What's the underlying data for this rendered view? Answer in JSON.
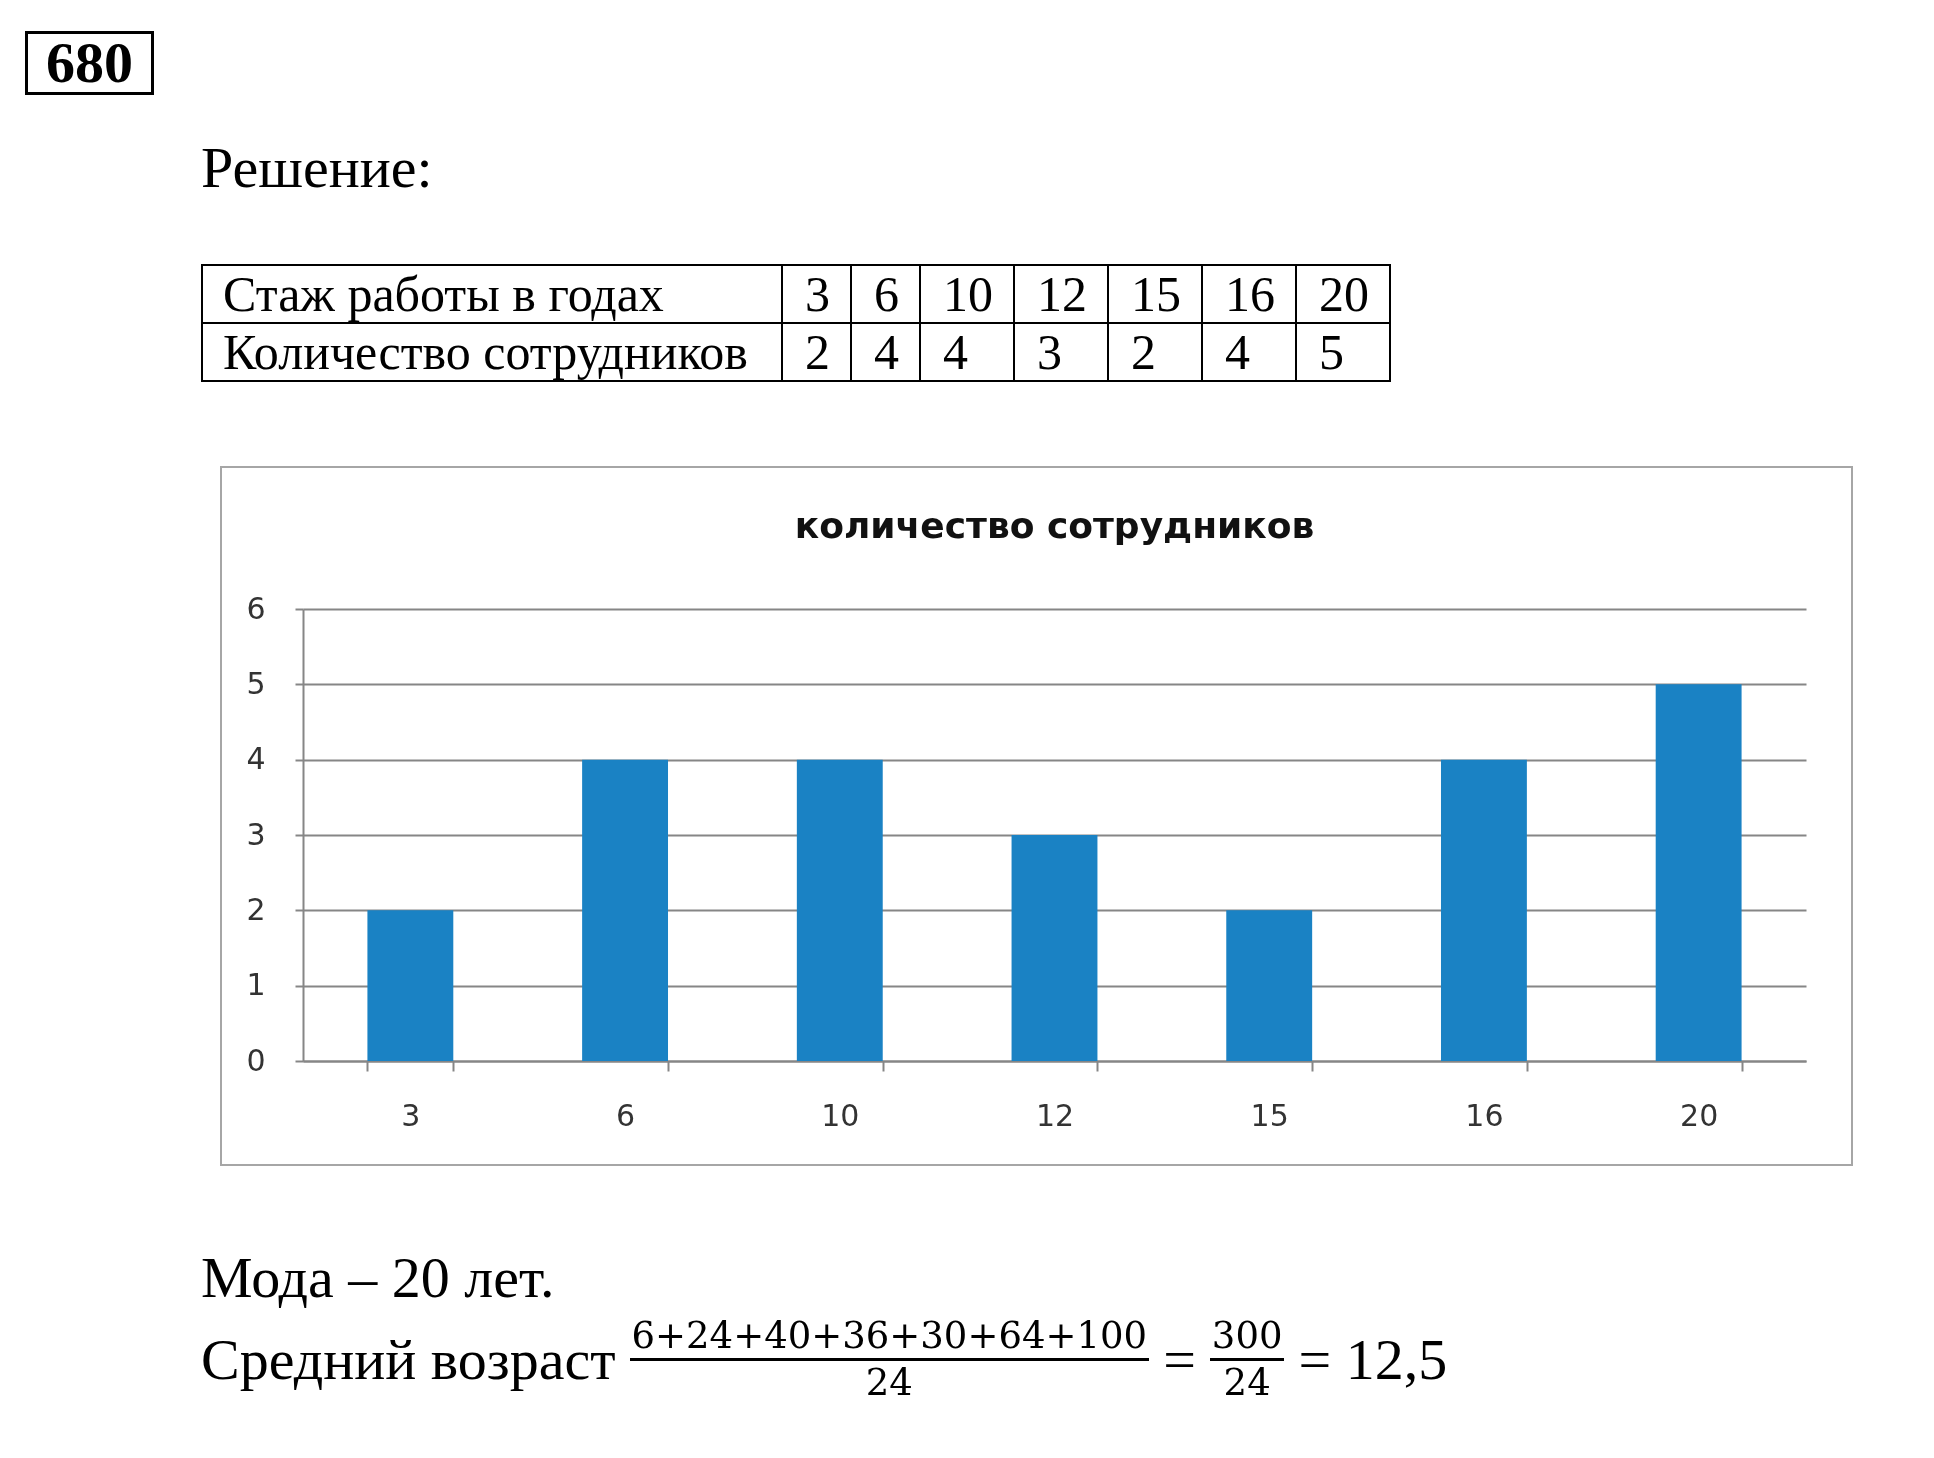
{
  "chart_data": {
    "type": "bar",
    "title": "количество сотрудников",
    "categories": [
      "3",
      "6",
      "10",
      "12",
      "15",
      "16",
      "20"
    ],
    "values": [
      2,
      4,
      4,
      3,
      2,
      4,
      5
    ],
    "color": "#1a82c4",
    "ylim": [
      0,
      6
    ],
    "yticks": [
      0,
      1,
      2,
      3,
      4,
      5,
      6
    ],
    "grid": "y",
    "annotations": [
      "680",
      "Решение:",
      "Стаж работы в годах",
      "Количество сотрудников",
      "2",
      "4",
      "4",
      "3",
      "2",
      "4",
      "5",
      "Мода – 20 лет.",
      "Средний возраст",
      "6+24+40+36+30+64+100",
      "24",
      "=",
      "300",
      "24",
      "= 12,5"
    ]
  }
}
